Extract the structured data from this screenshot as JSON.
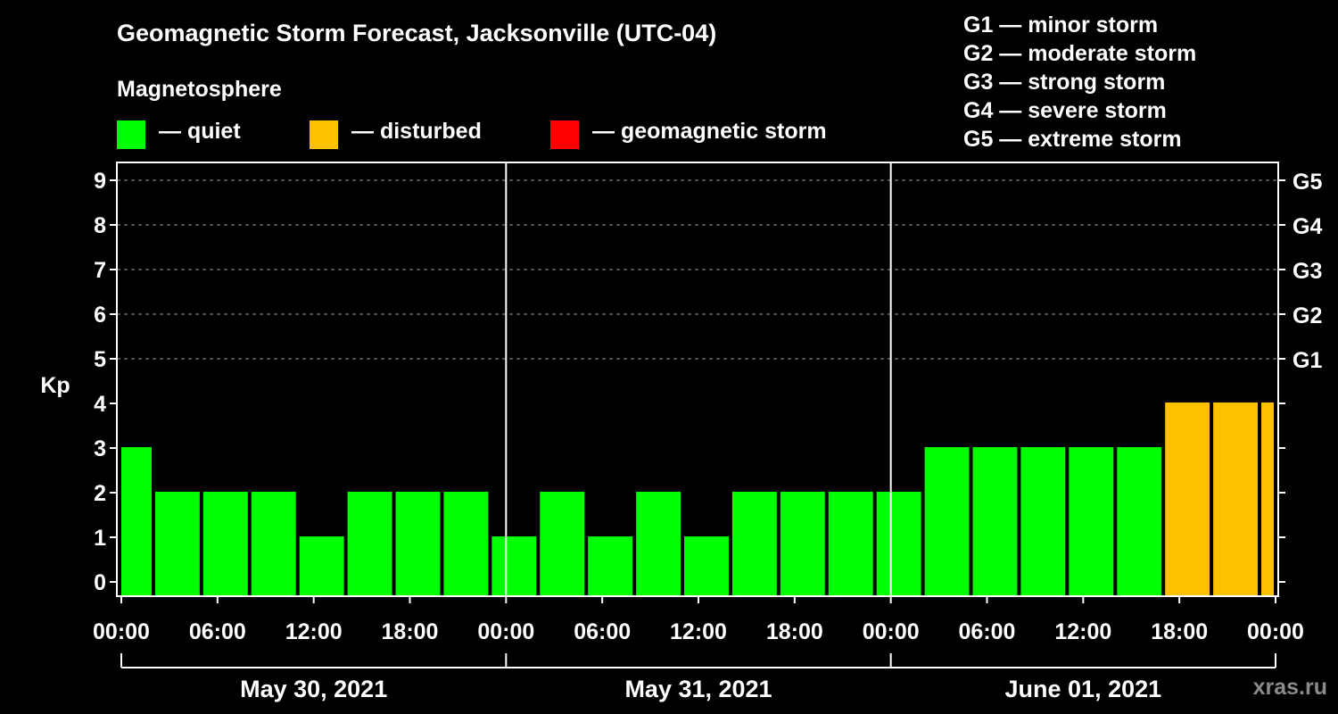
{
  "title": "Geomagnetic Storm Forecast, Jacksonville (UTC-04)",
  "legend": {
    "heading": "Magnetosphere",
    "items": [
      {
        "label": "— quiet",
        "color": "#00ff00"
      },
      {
        "label": "— disturbed",
        "color": "#ffc000"
      },
      {
        "label": "— geomagnetic storm",
        "color": "#ff0000"
      }
    ]
  },
  "g_scale": [
    "G1 — minor storm",
    "G2 — moderate storm",
    "G3 — strong storm",
    "G4 — severe storm",
    "G5 — extreme storm"
  ],
  "watermark": "xras.ru",
  "chart_data": {
    "type": "bar",
    "ylabel": "Kp",
    "ylim": [
      0,
      9
    ],
    "yticks": [
      0,
      1,
      2,
      3,
      4,
      5,
      6,
      7,
      8,
      9
    ],
    "right_axis": [
      {
        "kp": 5,
        "label": "G1"
      },
      {
        "kp": 6,
        "label": "G2"
      },
      {
        "kp": 7,
        "label": "G3"
      },
      {
        "kp": 8,
        "label": "G4"
      },
      {
        "kp": 9,
        "label": "G5"
      }
    ],
    "x_range_hours": [
      0,
      72
    ],
    "x_tick_labels": [
      "00:00",
      "06:00",
      "12:00",
      "18:00",
      "00:00",
      "06:00",
      "12:00",
      "18:00",
      "00:00",
      "06:00",
      "12:00",
      "18:00",
      "00:00"
    ],
    "days": [
      "May 30, 2021",
      "May 31, 2021",
      "June 01, 2021"
    ],
    "grid": "dashed horizontal at Kp 5-9",
    "bars": [
      {
        "start": 0,
        "end": 2,
        "kp": 3
      },
      {
        "start": 2,
        "end": 5,
        "kp": 2
      },
      {
        "start": 5,
        "end": 8,
        "kp": 2
      },
      {
        "start": 8,
        "end": 11,
        "kp": 2
      },
      {
        "start": 11,
        "end": 14,
        "kp": 1
      },
      {
        "start": 14,
        "end": 17,
        "kp": 2
      },
      {
        "start": 17,
        "end": 20,
        "kp": 2
      },
      {
        "start": 20,
        "end": 23,
        "kp": 2
      },
      {
        "start": 23,
        "end": 26,
        "kp": 1
      },
      {
        "start": 26,
        "end": 29,
        "kp": 2
      },
      {
        "start": 29,
        "end": 32,
        "kp": 1
      },
      {
        "start": 32,
        "end": 35,
        "kp": 2
      },
      {
        "start": 35,
        "end": 38,
        "kp": 1
      },
      {
        "start": 38,
        "end": 41,
        "kp": 2
      },
      {
        "start": 41,
        "end": 44,
        "kp": 2
      },
      {
        "start": 44,
        "end": 47,
        "kp": 2
      },
      {
        "start": 47,
        "end": 50,
        "kp": 2
      },
      {
        "start": 50,
        "end": 53,
        "kp": 3
      },
      {
        "start": 53,
        "end": 56,
        "kp": 3
      },
      {
        "start": 56,
        "end": 59,
        "kp": 3
      },
      {
        "start": 59,
        "end": 62,
        "kp": 3
      },
      {
        "start": 62,
        "end": 65,
        "kp": 3
      },
      {
        "start": 65,
        "end": 68,
        "kp": 4
      },
      {
        "start": 68,
        "end": 71,
        "kp": 4
      },
      {
        "start": 71,
        "end": 72,
        "kp": 4
      }
    ]
  }
}
